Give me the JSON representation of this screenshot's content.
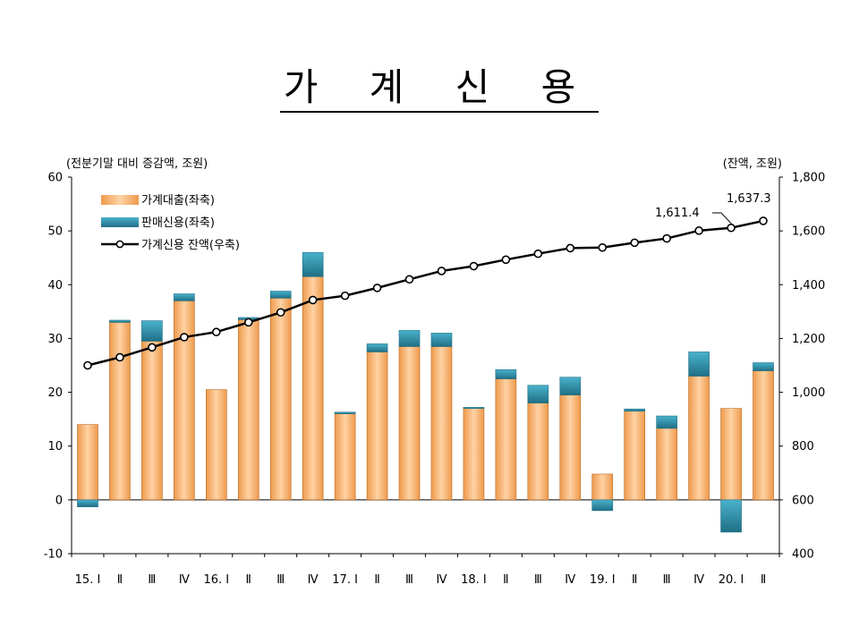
{
  "title": "가 계 신 용",
  "left_axis_title": "(전분기말 대비 증감액, 조원)",
  "right_axis_title": "(잔액, 조원)",
  "colors": {
    "loans": "#ee9a4c",
    "loans_highlight": "#ffd2a4",
    "credit": "#4ab2cc",
    "credit_dark": "#1f6f85",
    "line": "#000000",
    "marker_fill": "#ffffff"
  },
  "chart_data": {
    "type": "bar",
    "categories": [
      "15. Ⅰ",
      "Ⅱ",
      "Ⅲ",
      "Ⅳ",
      "16. Ⅰ",
      "Ⅱ",
      "Ⅲ",
      "Ⅳ",
      "17. Ⅰ",
      "Ⅱ",
      "Ⅲ",
      "Ⅳ",
      "18. Ⅰ",
      "Ⅱ",
      "Ⅲ",
      "Ⅳ",
      "19. Ⅰ",
      "Ⅱ",
      "Ⅲ",
      "Ⅳ",
      "20. Ⅰ",
      "Ⅱ"
    ],
    "series": [
      {
        "name": "가계대출(좌축)",
        "kind": "stacked-bar",
        "axis": "left",
        "values": [
          14.0,
          33.0,
          29.5,
          37.0,
          20.5,
          33.5,
          37.5,
          41.5,
          16.0,
          27.5,
          28.5,
          28.5,
          17.0,
          22.5,
          18.0,
          19.5,
          4.8,
          16.5,
          13.3,
          23.0,
          17.0,
          24.0
        ]
      },
      {
        "name": "판매신용(좌축)",
        "kind": "stacked-bar",
        "axis": "left",
        "values": [
          -1.3,
          0.4,
          3.8,
          1.3,
          0.0,
          0.4,
          1.3,
          4.5,
          0.3,
          1.5,
          3.0,
          2.5,
          0.2,
          1.7,
          3.3,
          3.3,
          -2.0,
          0.4,
          2.3,
          4.5,
          -6.0,
          1.5
        ]
      },
      {
        "name": "가계신용 잔액(우축)",
        "kind": "line",
        "axis": "right",
        "values": [
          1100,
          1130,
          1167,
          1205,
          1224,
          1260,
          1297,
          1343,
          1359,
          1388,
          1420,
          1451,
          1469,
          1493,
          1515,
          1536,
          1538,
          1556,
          1572,
          1601,
          1611.4,
          1637.3
        ]
      }
    ],
    "left_axis": {
      "min": -10,
      "max": 60,
      "ticks": [
        -10,
        0,
        10,
        20,
        30,
        40,
        50,
        60
      ]
    },
    "right_axis": {
      "min": 400,
      "max": 1800,
      "ticks": [
        "400",
        "600",
        "800",
        "1,000",
        "1,200",
        "1,400",
        "1,600",
        "1,800"
      ]
    },
    "annotations": [
      "1,611.4",
      "1,637.3"
    ],
    "legend": "top-left",
    "grid": false
  }
}
